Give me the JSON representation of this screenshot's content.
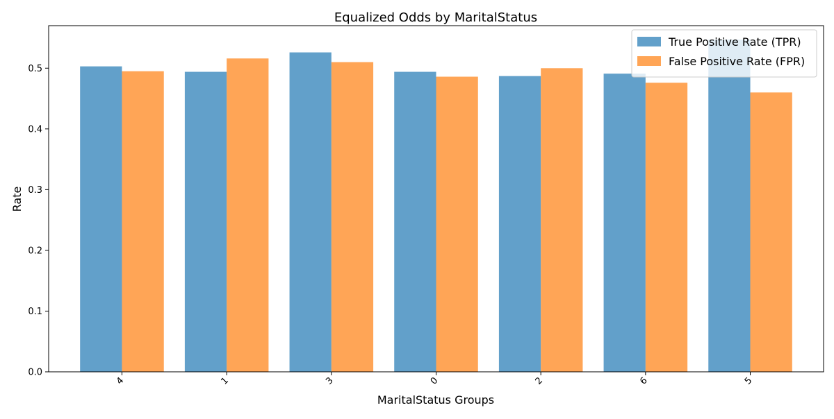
{
  "chart_data": {
    "type": "bar",
    "title": "Equalized Odds by MaritalStatus",
    "xlabel": "MaritalStatus Groups",
    "ylabel": "Rate",
    "categories": [
      "4",
      "1",
      "3",
      "0",
      "2",
      "6",
      "5"
    ],
    "series": [
      {
        "name": "True Positive Rate (TPR)",
        "color": "#1f77b4",
        "values": [
          0.503,
          0.494,
          0.526,
          0.494,
          0.487,
          0.491,
          0.547
        ]
      },
      {
        "name": "False Positive Rate (FPR)",
        "color": "#ff7f0e",
        "values": [
          0.495,
          0.516,
          0.51,
          0.486,
          0.5,
          0.476,
          0.46
        ]
      }
    ],
    "ylim": [
      0,
      0.57
    ],
    "yticks": [
      "0.0",
      "0.1",
      "0.2",
      "0.3",
      "0.4",
      "0.5"
    ],
    "grid": false,
    "legend_position": "top-right"
  }
}
